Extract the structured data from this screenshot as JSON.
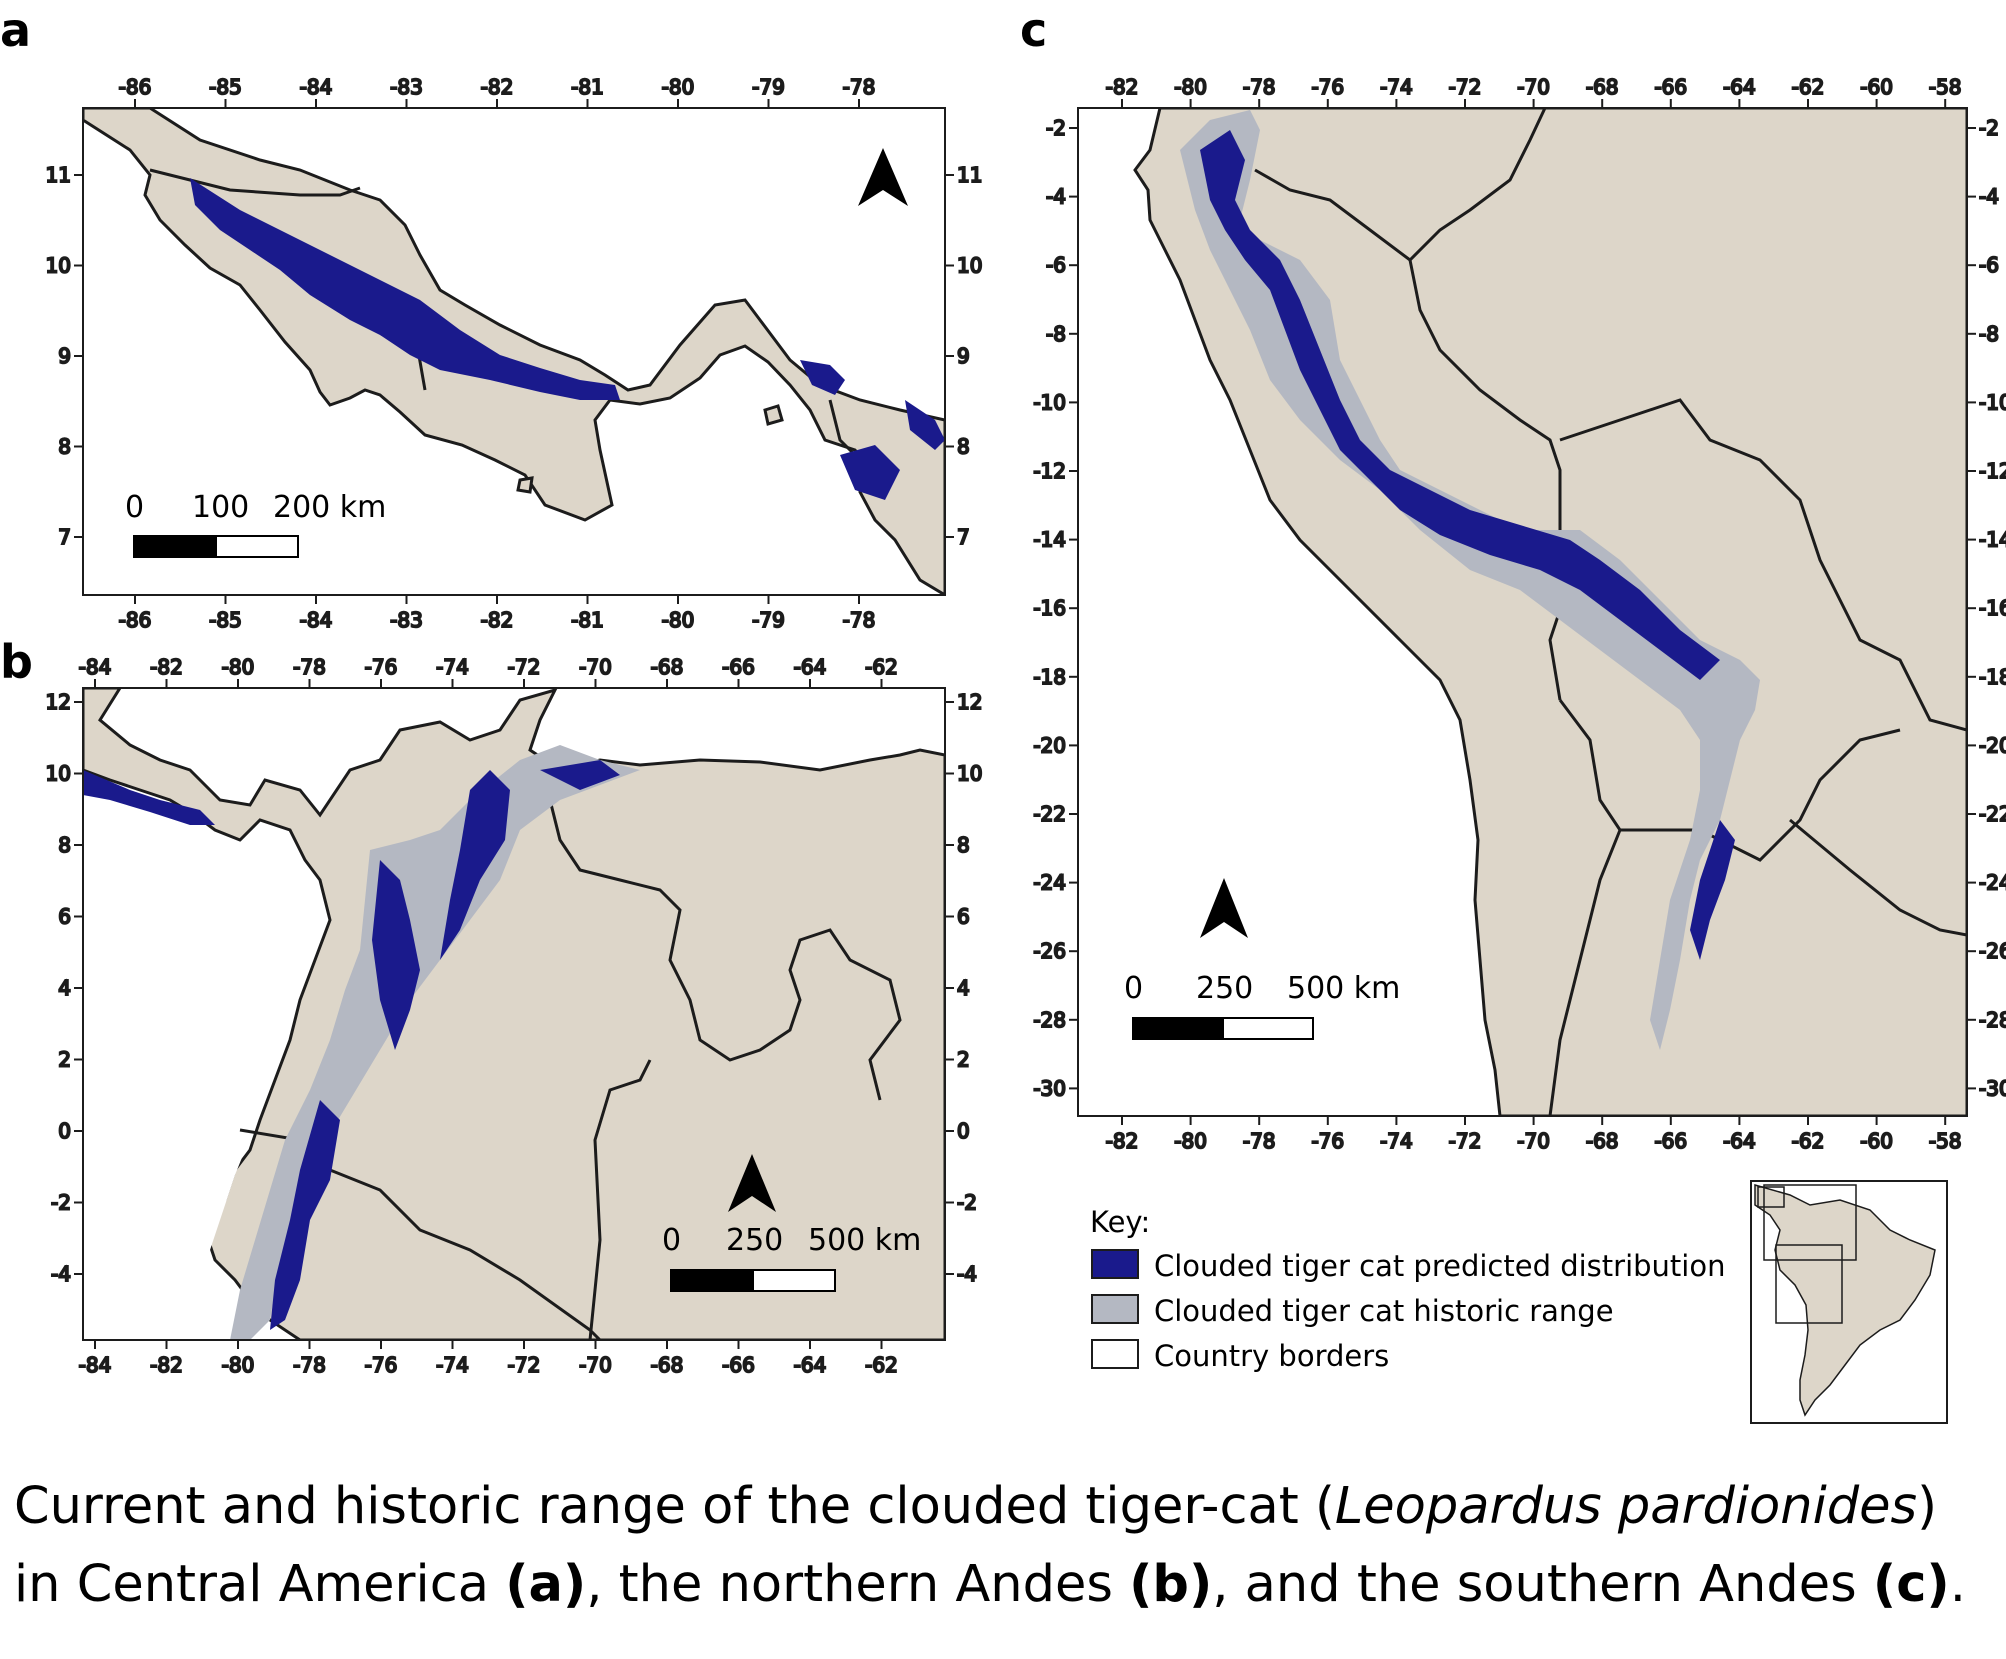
{
  "panels": [
    {
      "id": "a",
      "letter": "a",
      "lon_ticks": [
        "-86",
        "-85",
        "-84",
        "-83",
        "-82",
        "-81",
        "-80",
        "-79",
        "-78"
      ],
      "lat_ticks": [
        "11",
        "10",
        "9",
        "8",
        "7"
      ],
      "scale_labels": [
        "0",
        "100",
        "200 km"
      ]
    },
    {
      "id": "b",
      "letter": "b",
      "lon_ticks": [
        "-84",
        "-82",
        "-80",
        "-78",
        "-76",
        "-74",
        "-72",
        "-70",
        "-68",
        "-66",
        "-64",
        "-62"
      ],
      "lat_ticks": [
        "12",
        "10",
        "8",
        "6",
        "4",
        "2",
        "0",
        "-2",
        "-4"
      ],
      "scale_labels": [
        "0",
        "250",
        "500 km"
      ]
    },
    {
      "id": "c",
      "letter": "c",
      "lon_ticks": [
        "-82",
        "-80",
        "-78",
        "-76",
        "-74",
        "-72",
        "-70",
        "-68",
        "-66",
        "-64",
        "-62",
        "-60",
        "-58"
      ],
      "lat_ticks": [
        "-2",
        "-4",
        "-6",
        "-8",
        "-10",
        "-12",
        "-14",
        "-16",
        "-18",
        "-20",
        "-22",
        "-24",
        "-26",
        "-28",
        "-30"
      ],
      "scale_labels": [
        "0",
        "250",
        "500 km"
      ]
    }
  ],
  "key": {
    "title": "Key:",
    "items": [
      {
        "label": "Clouded tiger cat predicted distribution",
        "color": "#1a1a8c"
      },
      {
        "label": "Clouded tiger cat historic range",
        "color": "#b4b8c2"
      },
      {
        "label": "Country borders",
        "color": "#ffffff"
      }
    ]
  },
  "colors": {
    "land": "#ddd6c9",
    "predicted": "#1a1a8c",
    "historic": "#b4b8c2",
    "border": "#1c1c1c"
  },
  "caption": {
    "line1_pre": "Current and historic range of the clouded tiger-cat (",
    "line1_italic": "Leopardus pardionides",
    "line1_post": ")",
    "line2_pre": "in Central America ",
    "line2_a": "(a)",
    "line2_mid1": ", the northern Andes ",
    "line2_b": "(b)",
    "line2_mid2": ", and the southern Andes ",
    "line2_c": "(c)",
    "line2_post": "."
  }
}
